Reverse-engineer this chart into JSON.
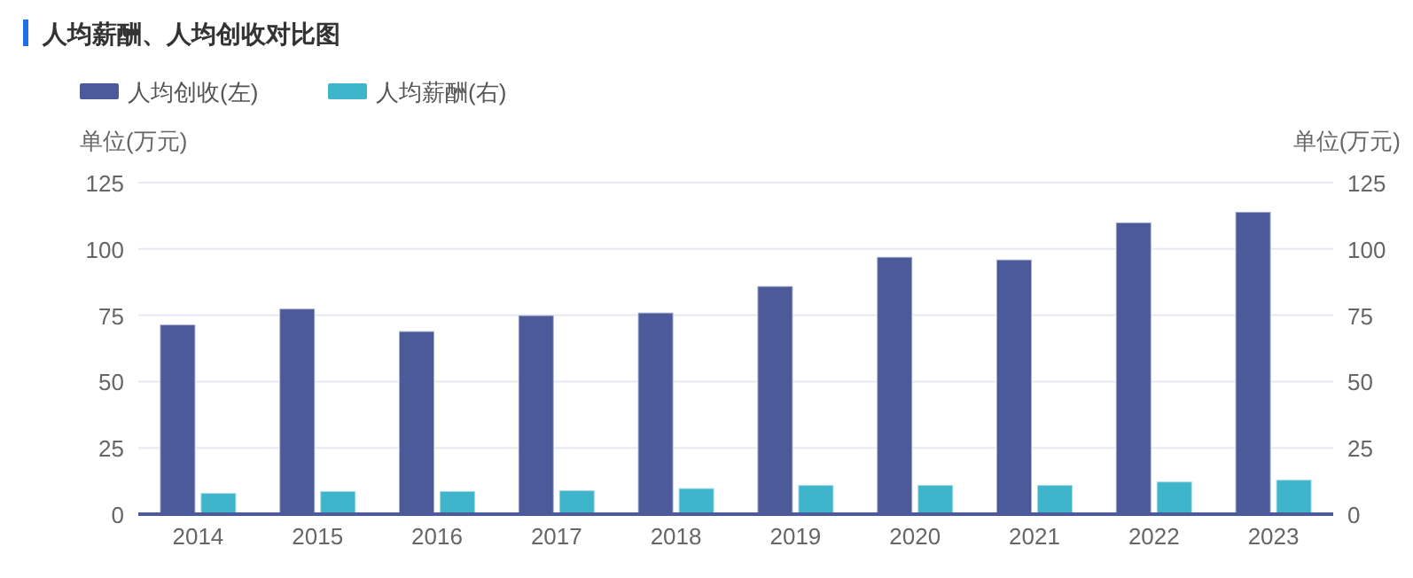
{
  "chart_data": {
    "type": "bar",
    "title": "人均薪酬、人均创收对比图",
    "ylabel": "单位(万元)",
    "y2label": "单位(万元)",
    "categories": [
      "2014",
      "2015",
      "2016",
      "2017",
      "2018",
      "2019",
      "2020",
      "2021",
      "2022",
      "2023"
    ],
    "series": [
      {
        "name": "人均创收(左)",
        "color": "#4c5a99",
        "values": [
          71.5,
          77.5,
          69,
          75,
          76,
          86,
          97,
          96,
          110,
          114
        ]
      },
      {
        "name": "人均薪酬(右)",
        "color": "#3fb5cc",
        "axis": "y2",
        "values": [
          8,
          8.7,
          8.7,
          9,
          9.8,
          11,
          11,
          11,
          12.3,
          13
        ]
      }
    ],
    "ylim": [
      0,
      125
    ],
    "yticks": [
      0,
      25,
      50,
      75,
      100,
      125
    ],
    "y2lim": [
      0,
      125
    ],
    "y2ticks": [
      0,
      25,
      50,
      75,
      100,
      125
    ],
    "grid": "y",
    "legend": "top left"
  }
}
